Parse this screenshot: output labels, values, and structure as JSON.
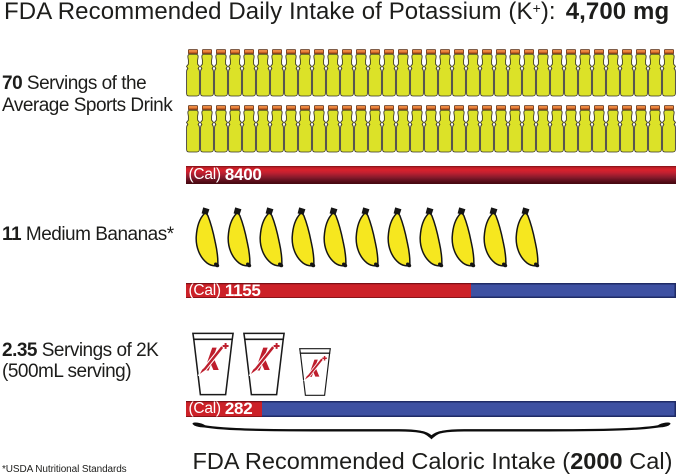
{
  "title": {
    "prefix": "FDA Recommended Daily Intake of Potassium (K",
    "sup": "+",
    "suffix": "):",
    "value": "4,700 mg"
  },
  "rows": [
    {
      "name": "sports-drink",
      "label_bold": "70",
      "label_line1": " Servings of the",
      "label_line2": "Average Sports Drink",
      "cal_prefix": "(Cal) ",
      "cal_value": "8400",
      "icon": "sports-drink-bottle",
      "icon_count": 70,
      "icons_per_row": 35,
      "calories": 8400
    },
    {
      "name": "bananas",
      "label_bold": "11",
      "label_line1": " Medium Bananas*",
      "label_line2": "",
      "cal_prefix": "(Cal) ",
      "cal_value": "1155",
      "icon": "banana",
      "icon_count": 11,
      "calories": 1155
    },
    {
      "name": "2k-servings",
      "label_bold": "2.35",
      "label_line1": " Servings of 2K",
      "label_line2": "(500mL serving)",
      "cal_prefix": "(Cal) ",
      "cal_value": "282",
      "icon": "2k-cup",
      "icon_count": 2.35,
      "calories": 282
    }
  ],
  "axis": {
    "prefix": "FDA Recommended Caloric Intake (",
    "bold": "2000",
    "suffix": " Cal)"
  },
  "footnote": "*USDA Nutritional Standards",
  "colors": {
    "red": "#cc2128",
    "blue": "#3e51a2",
    "blue_outline": "#1f2b66",
    "bottle_body": "#dce228",
    "bottle_cap": "#e2702d",
    "banana": "#f6e71f",
    "cup_logo_red": "#be1e2d",
    "text": "#1d1d1b"
  },
  "chart_data": {
    "type": "bar",
    "title": "FDA Recommended Daily Intake of Potassium (K+): 4,700 mg",
    "categories": [
      "70 Servings of the Average Sports Drink",
      "11 Medium Bananas*",
      "2.35 Servings of 2K (500mL serving)"
    ],
    "series": [
      {
        "name": "Calories",
        "values": [
          8400,
          1155,
          282
        ]
      }
    ],
    "xlabel": "FDA Recommended Caloric Intake (2000 Cal)",
    "x_reference_max": 2000,
    "icon_counts": [
      70,
      11,
      2.35
    ],
    "bar_colors": [
      "#cc2128",
      "#3e51a2"
    ],
    "notes": "*USDA Nutritional Standards"
  },
  "bar_red_fractions": [
    1.0,
    0.5816,
    0.1551
  ]
}
